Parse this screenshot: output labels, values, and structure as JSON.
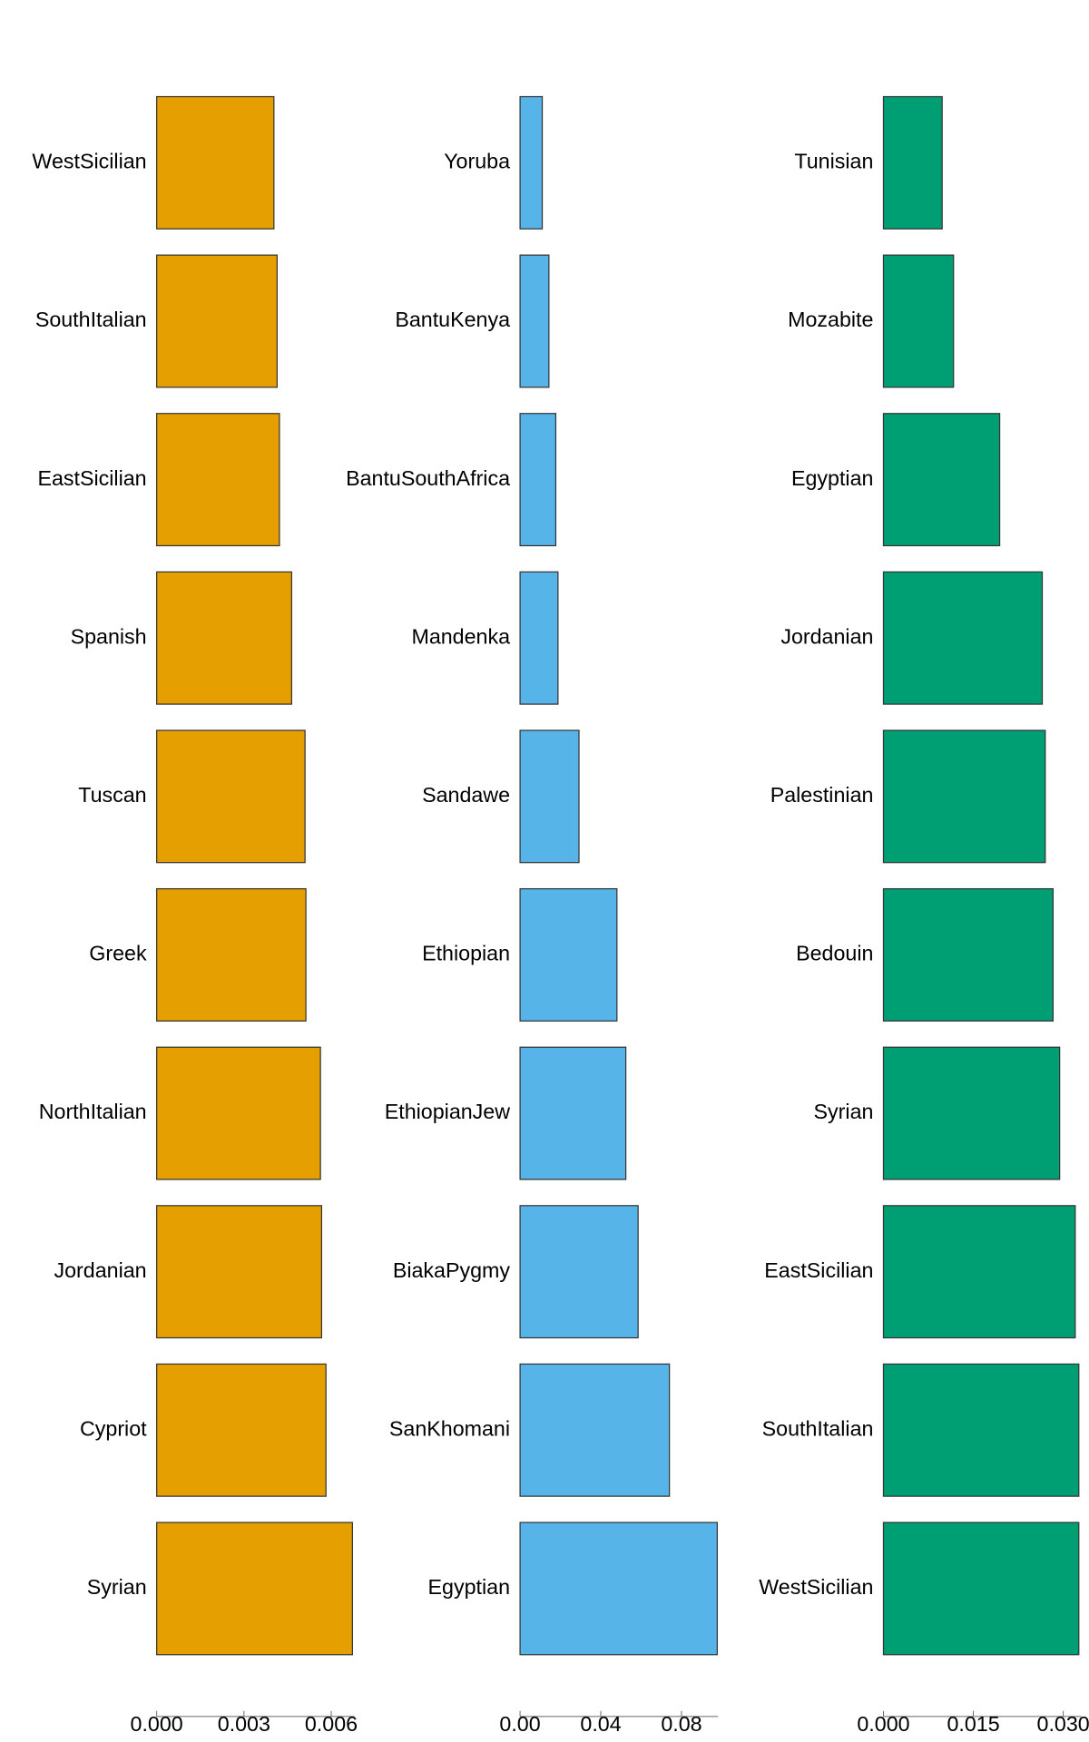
{
  "chart_data": [
    {
      "type": "bar",
      "orientation": "horizontal",
      "categories": [
        "WestSicilian",
        "SouthItalian",
        "EastSicilian",
        "Spanish",
        "Tuscan",
        "Greek",
        "NorthItalian",
        "Jordanian",
        "Cypriot",
        "Syrian"
      ],
      "values": [
        0.00403,
        0.00414,
        0.00422,
        0.00464,
        0.0051,
        0.00513,
        0.00563,
        0.00567,
        0.00582,
        0.00673
      ],
      "color": "#E69F00",
      "xlim": [
        0,
        0.0068
      ],
      "xticks": [
        {
          "value": 0,
          "label": "0.000"
        },
        0.003,
        0.006
      ]
    },
    {
      "type": "bar",
      "orientation": "horizontal",
      "categories": [
        "Yoruba",
        "BantuKenya",
        "BantuSouthAfrica",
        "Mandenka",
        "Sandawe",
        "Ethiopian",
        "EthiopianJew",
        "BiakaPygmy",
        "SanKhomani",
        "Egyptian"
      ],
      "values": [
        0.011,
        0.0143,
        0.0177,
        0.0188,
        0.0292,
        0.048,
        0.0524,
        0.0585,
        0.074,
        0.0977
      ],
      "color": "#56B4E9",
      "xlim": [
        0,
        0.098
      ],
      "xticks": [
        {
          "value": 0,
          "label": "0.00"
        },
        0.04,
        0.08
      ]
    },
    {
      "type": "bar",
      "orientation": "horizontal",
      "categories": [
        "Tunisian",
        "Mozabite",
        "Egyptian",
        "Jordanian",
        "Palestinian",
        "Bedouin",
        "Syrian",
        "EastSicilian",
        "SouthItalian",
        "WestSicilian"
      ],
      "values": [
        0.0098,
        0.0117,
        0.0194,
        0.0265,
        0.027,
        0.0283,
        0.0294,
        0.032,
        0.0326,
        0.0326
      ],
      "color": "#009E73",
      "xlim": [
        0,
        0.033
      ],
      "xticks": [
        {
          "value": 0,
          "label": "0.000"
        },
        0.015,
        {
          "value": 0.03,
          "label": "0.030"
        }
      ]
    }
  ]
}
